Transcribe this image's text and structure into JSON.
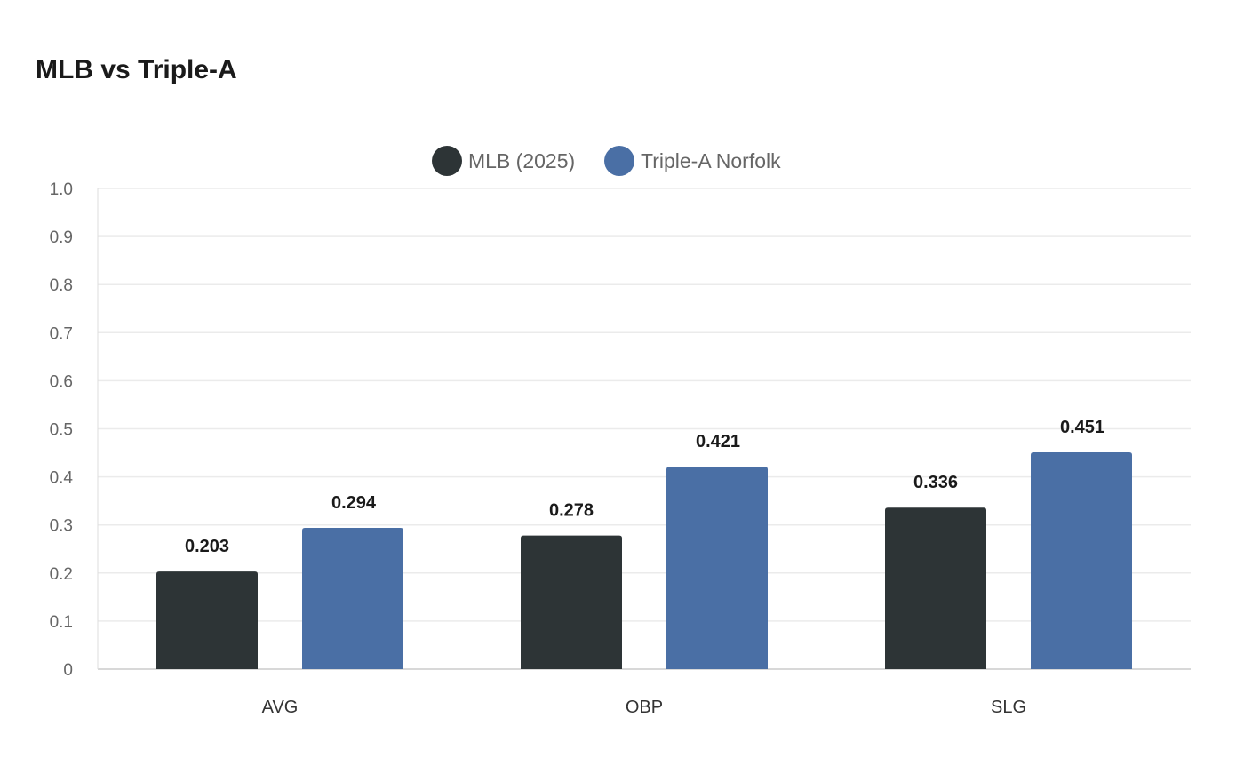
{
  "title": "MLB vs Triple-A",
  "chart_data": {
    "type": "bar",
    "title": "MLB vs Triple-A",
    "categories": [
      "AVG",
      "OBP",
      "SLG"
    ],
    "series": [
      {
        "name": "MLB (2025)",
        "color": "#2d3436",
        "values": [
          0.203,
          0.278,
          0.336
        ]
      },
      {
        "name": "Triple-A Norfolk",
        "color": "#4a6fa5",
        "values": [
          0.294,
          0.421,
          0.451
        ]
      }
    ],
    "yticks": [
      "0",
      "0.1",
      "0.2",
      "0.3",
      "0.4",
      "0.5",
      "0.6",
      "0.7",
      "0.8",
      "0.9",
      "1.0"
    ],
    "ylim": [
      0,
      1.0
    ],
    "xlabel": "",
    "ylabel": "",
    "grid": true,
    "legend": "top-center",
    "data_labels": true
  }
}
